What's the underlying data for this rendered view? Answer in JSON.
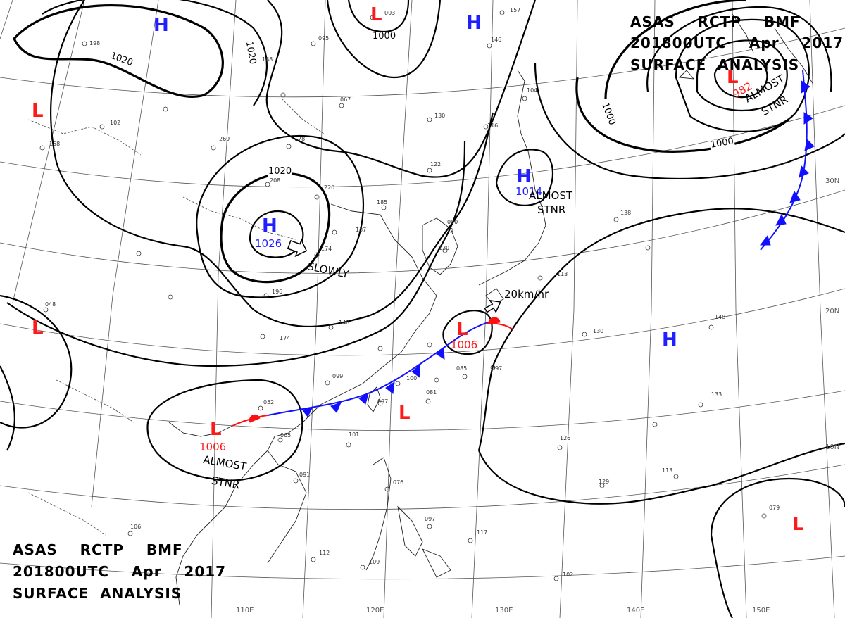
{
  "header_top_right": {
    "line1": "ASAS    RCTP    BMF",
    "line2": "201800UTC    Apr    2017",
    "line3": "SURFACE  ANALYSIS"
  },
  "header_bottom_left": {
    "line1": "ASAS    RCTP    BMF",
    "line2": "201800UTC    Apr    2017",
    "line3": "SURFACE  ANALYSIS"
  },
  "pressure_systems": [
    {
      "id": "H-north-center",
      "type": "H",
      "color": "#1f1fff"
    },
    {
      "id": "H-northwest",
      "type": "H",
      "color": "#1f1fff"
    },
    {
      "id": "H-china",
      "type": "H",
      "pressure": "1026",
      "color": "#1f1fff"
    },
    {
      "id": "H-japan",
      "type": "H",
      "pressure": "1014",
      "color": "#1f1fff"
    },
    {
      "id": "H-pacific",
      "type": "H",
      "color": "#1f1fff"
    },
    {
      "id": "L-top",
      "type": "L",
      "color": "#ff1a1a"
    },
    {
      "id": "L-west",
      "type": "L",
      "color": "#ff1a1a"
    },
    {
      "id": "L-westmid",
      "type": "L",
      "color": "#ff1a1a"
    },
    {
      "id": "L-okinawa",
      "type": "L",
      "pressure": "1006",
      "color": "#ff1a1a"
    },
    {
      "id": "L-indochina",
      "type": "L",
      "pressure": "1006",
      "color": "#ff1a1a"
    },
    {
      "id": "L-scs",
      "type": "L",
      "color": "#ff1a1a"
    },
    {
      "id": "L-kamchatka",
      "type": "L",
      "pressure": "982",
      "color": "#ff1a1a"
    },
    {
      "id": "L-southeast",
      "type": "L",
      "color": "#ff1a1a"
    }
  ],
  "notes": {
    "slowly": "SLOWLY",
    "speed": "20km/hr",
    "almost_stnr_1_a": "ALMOST",
    "almost_stnr_1_b": "STNR",
    "almost_stnr_2_a": "ALMOST",
    "almost_stnr_2_b": "STNR",
    "almost_stnr_3_a": "ALMOST",
    "almost_stnr_3_b": "STNR"
  },
  "isobar_labels": [
    "1020",
    "1020",
    "1000",
    "1020",
    "1000",
    "1000"
  ],
  "latitude_labels": [
    "30N",
    "20N",
    "10N"
  ],
  "longitude_labels": [
    "110E",
    "120E",
    "130E",
    "140E",
    "150E"
  ],
  "station_text": [
    "003",
    "095",
    "188",
    "067",
    "198",
    "102",
    "158",
    "269",
    "178",
    "208",
    "220",
    "185",
    "137",
    "174",
    "196",
    "048",
    "148",
    "174",
    "099",
    "100",
    "097",
    "085",
    "081",
    "097",
    "052",
    "065",
    "091",
    "101",
    "076",
    "097",
    "112",
    "109",
    "117",
    "102",
    "106",
    "079",
    "113",
    "129",
    "126",
    "133",
    "130",
    "148",
    "122",
    "116",
    "104",
    "130",
    "146",
    "157",
    "120",
    "090",
    "113",
    "138"
  ],
  "colors": {
    "isobar": "#000000",
    "coast": "#222222",
    "grid": "#555555",
    "cold_front": "#1010ff",
    "warm_front": "#ff1010",
    "high": "#1f1fff",
    "low": "#ff1a1a"
  }
}
